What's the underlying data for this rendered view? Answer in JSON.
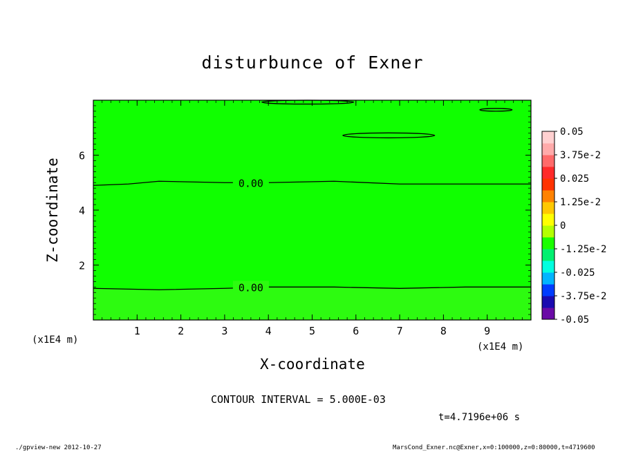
{
  "chart_data": {
    "type": "heatmap",
    "title": "disturbunce of Exner",
    "xlabel": "X-coordinate",
    "ylabel": "Z-coordinate",
    "x_unit_label": "(x1E4 m)",
    "xlim": [
      0,
      10
    ],
    "ylim": [
      0,
      8
    ],
    "x_ticks": [
      1,
      2,
      3,
      4,
      5,
      6,
      7,
      8,
      9
    ],
    "y_ticks": [
      2,
      4,
      6
    ],
    "field_value": 0,
    "contour_lines": [
      {
        "label": "0.00",
        "x": [
          0,
          0.8,
          1.5,
          3,
          4,
          5.5,
          7,
          8.5,
          10
        ],
        "y": [
          4.9,
          4.95,
          5.05,
          5.0,
          5.0,
          5.05,
          4.95,
          4.95,
          4.95
        ]
      },
      {
        "label": "0.00",
        "x": [
          0,
          1.5,
          3,
          4,
          5.5,
          7,
          8.5,
          10
        ],
        "y": [
          1.15,
          1.1,
          1.15,
          1.2,
          1.2,
          1.15,
          1.2,
          1.2
        ]
      }
    ],
    "closed_contours": [
      {
        "cx": 6.75,
        "cy": 6.72,
        "rx": 1.05,
        "ry": 0.09
      },
      {
        "cx": 9.2,
        "cy": 7.65,
        "rx": 0.37,
        "ry": 0.05
      },
      {
        "cx": 4.9,
        "cy": 7.93,
        "rx": 1.05,
        "ry": 0.07
      }
    ],
    "colorbar": {
      "ticks": [
        "0.05",
        "3.75e-2",
        "0.025",
        "1.25e-2",
        "0",
        "-1.25e-2",
        "-0.025",
        "-3.75e-2",
        "-0.05"
      ],
      "levels": [
        -0.05,
        -0.0375,
        -0.025,
        -0.0125,
        0,
        0.0125,
        0.025,
        0.0375,
        0.05
      ],
      "colors": [
        "#6a0aa6",
        "#1a0ab0",
        "#003cff",
        "#00b4ff",
        "#00ffe0",
        "#00f070",
        "#1aff00",
        "#b4ff00",
        "#ffff00",
        "#ffc800",
        "#ff8200",
        "#ff3200",
        "#ff2a2a",
        "#ff6a6a",
        "#ffaaaa",
        "#ffd0d0"
      ]
    },
    "field_colors": {
      "lower": "#2dfb10",
      "upper": "#10ff00"
    }
  },
  "annotations": {
    "contour_interval": "CONTOUR INTERVAL = 5.000E-03",
    "time": "t=4.7196e+06 s",
    "footer_left": "./gpview-new  2012-10-27",
    "footer_right": "MarsCond_Exner.nc@Exner,x=0:100000,z=0:80000,t=4719600"
  }
}
